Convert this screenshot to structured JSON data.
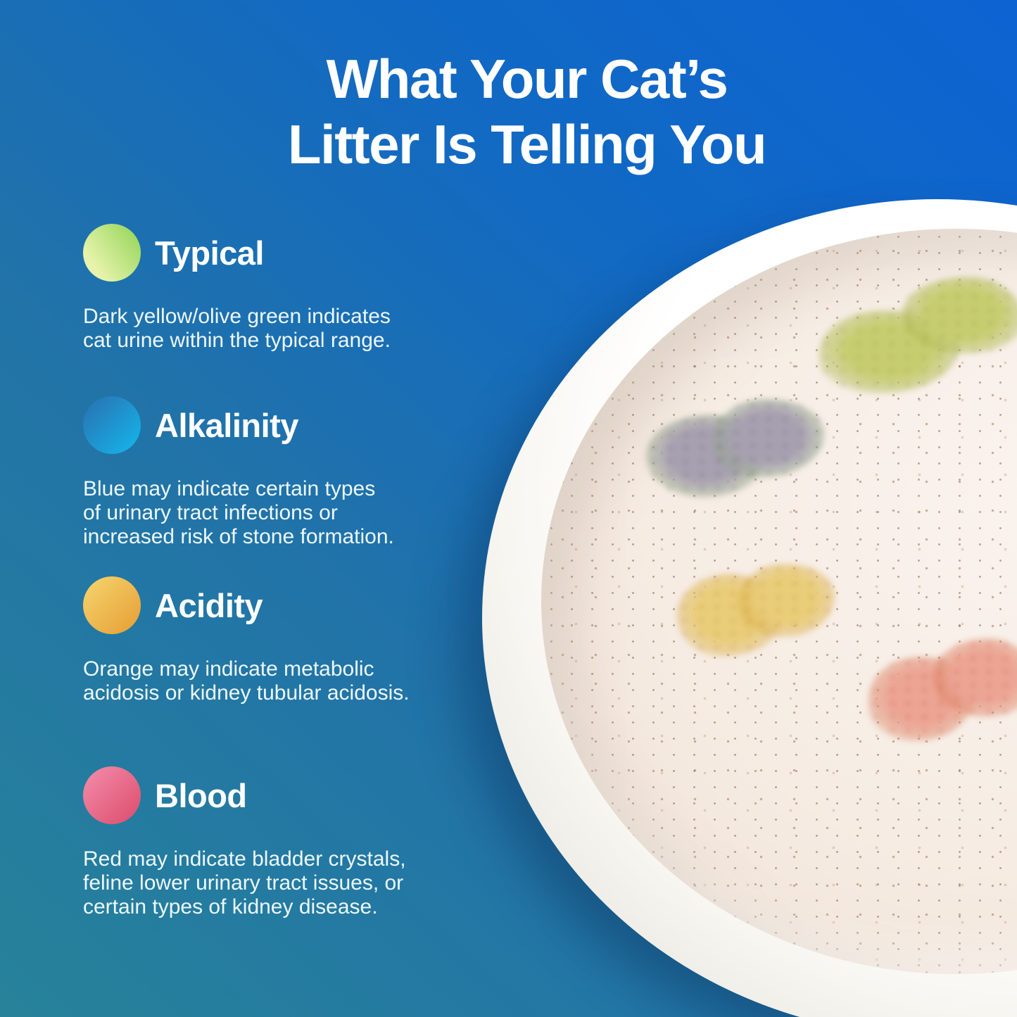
{
  "background": {
    "gradient_bottom_left": "#27829a",
    "gradient_mid": "#2173a8",
    "gradient_top_right": "#0d63d2"
  },
  "title": {
    "line1": "What Your Cat’s",
    "line2": "Litter Is Telling You"
  },
  "sections": [
    {
      "id": "typical",
      "title": "Typical",
      "dot_colors": {
        "light": "#e7f3ab",
        "dark": "#8fd355"
      },
      "lines": [
        "Dark yellow/olive green indicates",
        "cat urine within the typical range."
      ]
    },
    {
      "id": "alkalinity",
      "title": "Alkalinity",
      "dot_colors": {
        "light": "#17ade4",
        "dark": "#2b6fae"
      },
      "lines": [
        "Blue may indicate certain types",
        "of urinary tract infections or",
        "increased risk of stone formation."
      ]
    },
    {
      "id": "acidity",
      "title": "Acidity",
      "dot_colors": {
        "light": "#f5d069",
        "dark": "#e59d33"
      },
      "lines": [
        "Orange may indicate metabolic",
        "acidosis or kidney tubular acidosis."
      ]
    },
    {
      "id": "blood",
      "title": "Blood",
      "dot_colors": {
        "light": "#f18ba8",
        "dark": "#dd4b6b"
      },
      "lines": [
        "Red may indicate bladder crystals,",
        "feline lower urinary tract issues, or",
        "certain types of kidney disease."
      ]
    }
  ],
  "bowl": {
    "dish_color": "#ffffff",
    "rim_shade_color": "#d5d3cb",
    "litter_color": "#f5ebe2",
    "patches": [
      {
        "name": "olive-green-patch",
        "color": "#c6cd70",
        "fringe": "rgba(172,184,80,0.45)"
      },
      {
        "name": "gray-blue-patch",
        "color": "#a7a0b0",
        "fringe": "rgba(148,165,142,0.50)"
      },
      {
        "name": "amber-patch",
        "color": "#e9cd79",
        "fringe": "rgba(216,169,63,0.40)"
      },
      {
        "name": "salmon-red-patch",
        "color": "#eca493",
        "fringe": "rgba(217,122,88,0.40)"
      }
    ]
  }
}
